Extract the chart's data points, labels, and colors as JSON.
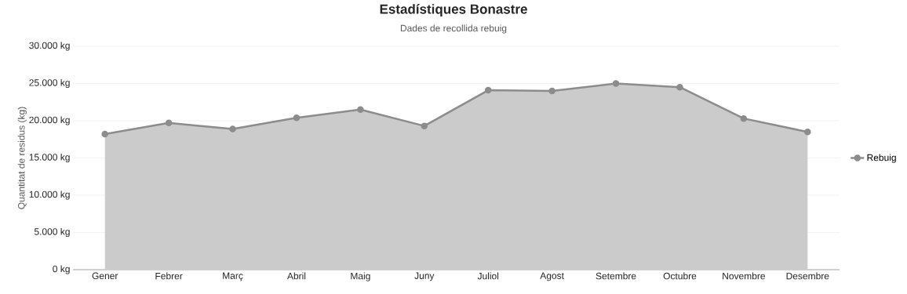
{
  "chart_data": {
    "type": "area",
    "title": "Estadístiques Bonastre",
    "subtitle": "Dades de recollida rebuig",
    "ylabel": "Quantitat de residus (kg)",
    "categories": [
      "Gener",
      "Febrer",
      "Març",
      "Abril",
      "Maig",
      "Juny",
      "Juliol",
      "Agost",
      "Setembre",
      "Octubre",
      "Novembre",
      "Desembre"
    ],
    "series": [
      {
        "name": "Rebuig",
        "color": "#8c8c8c",
        "values": [
          18200,
          19700,
          18900,
          20400,
          21500,
          19300,
          24100,
          24000,
          25000,
          24500,
          20300,
          18500
        ]
      }
    ],
    "ylim": [
      0,
      30000
    ],
    "yticks": [
      {
        "value": 0,
        "label": "0 kg"
      },
      {
        "value": 5000,
        "label": "5.000 kg"
      },
      {
        "value": 10000,
        "label": "10.000 kg"
      },
      {
        "value": 15000,
        "label": "15.000 kg"
      },
      {
        "value": 20000,
        "label": "20.000 kg"
      },
      {
        "value": 25000,
        "label": "25.000 kg"
      },
      {
        "value": 30000,
        "label": "30.000 kg"
      }
    ],
    "grid": "y",
    "legend": "right",
    "marker": "circle",
    "line_style": "solid"
  }
}
